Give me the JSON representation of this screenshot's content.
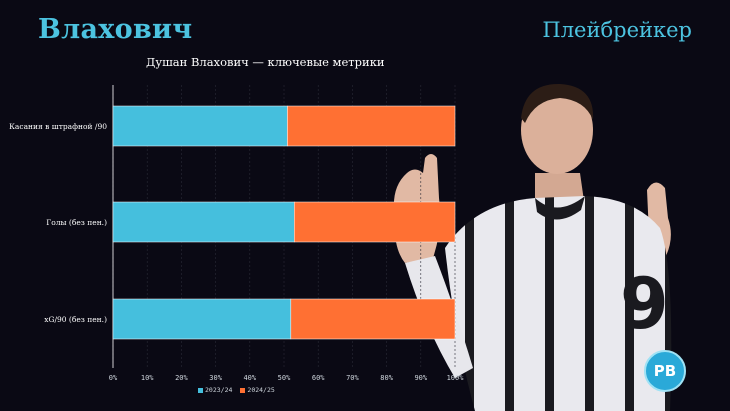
{
  "header": {
    "title": "Влахович",
    "brand": "Плейбрейкер"
  },
  "logo_text": "PB",
  "colors": {
    "series_2023": "#45bfdd",
    "series_2024": "#ff7033",
    "accent": "#4cc3e0",
    "background": "#0a0914"
  },
  "chart_data": {
    "type": "bar",
    "orientation": "horizontal",
    "stacked": true,
    "title": "Душан Влахович — ключевые метрики",
    "categories": [
      "Касания в штрафной /90",
      "Голы (без пен.)",
      "xG/90 (без пен.)"
    ],
    "series": [
      {
        "name": "2023/24",
        "values": [
          51,
          53,
          52
        ]
      },
      {
        "name": "2024/25",
        "values": [
          49,
          47,
          48
        ]
      }
    ],
    "xlim": [
      0,
      100
    ],
    "xticks": [
      "0%",
      "10%",
      "20%",
      "30%",
      "40%",
      "50%",
      "60%",
      "70%",
      "80%",
      "90%",
      "100%"
    ],
    "grid": true,
    "legend_position": "bottom"
  }
}
